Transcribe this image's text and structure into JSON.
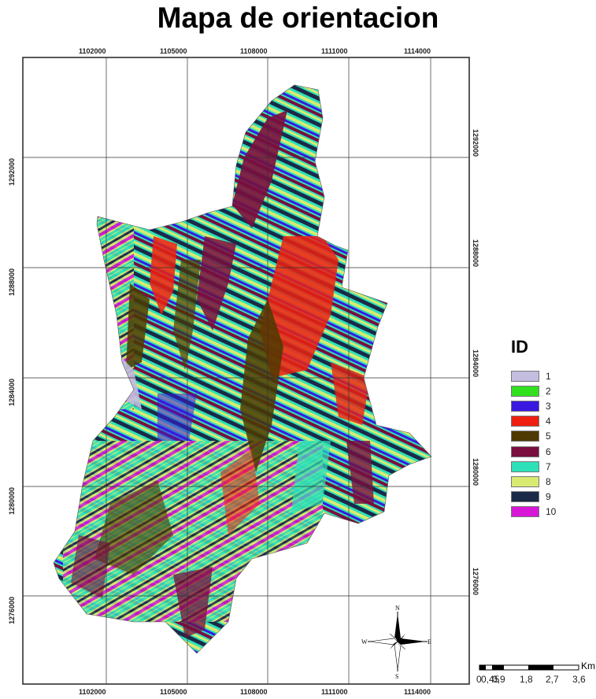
{
  "title": "Mapa de orientacion",
  "grid": {
    "x_labels": [
      "1102000",
      "1105000",
      "1108000",
      "1111000",
      "1114000"
    ],
    "y_labels": [
      "1292000",
      "1288000",
      "1284000",
      "1280000",
      "1276000"
    ]
  },
  "legend": {
    "title": "ID",
    "items": [
      {
        "label": "1",
        "color": "#c4bde0"
      },
      {
        "label": "2",
        "color": "#33e020"
      },
      {
        "label": "3",
        "color": "#3a18e0"
      },
      {
        "label": "4",
        "color": "#ee2010"
      },
      {
        "label": "5",
        "color": "#4e3a00"
      },
      {
        "label": "6",
        "color": "#7a0e3e"
      },
      {
        "label": "7",
        "color": "#2ee0b8"
      },
      {
        "label": "8",
        "color": "#d8ea70"
      },
      {
        "label": "9",
        "color": "#1a2a48"
      },
      {
        "label": "10",
        "color": "#d816d8"
      }
    ]
  },
  "compass": {
    "n": "N",
    "s": "S",
    "e": "E",
    "w": "W"
  },
  "scale": {
    "unit": "Km",
    "labels": [
      "0",
      "0,45",
      "0,9",
      "1,8",
      "2,7",
      "3,6"
    ]
  }
}
